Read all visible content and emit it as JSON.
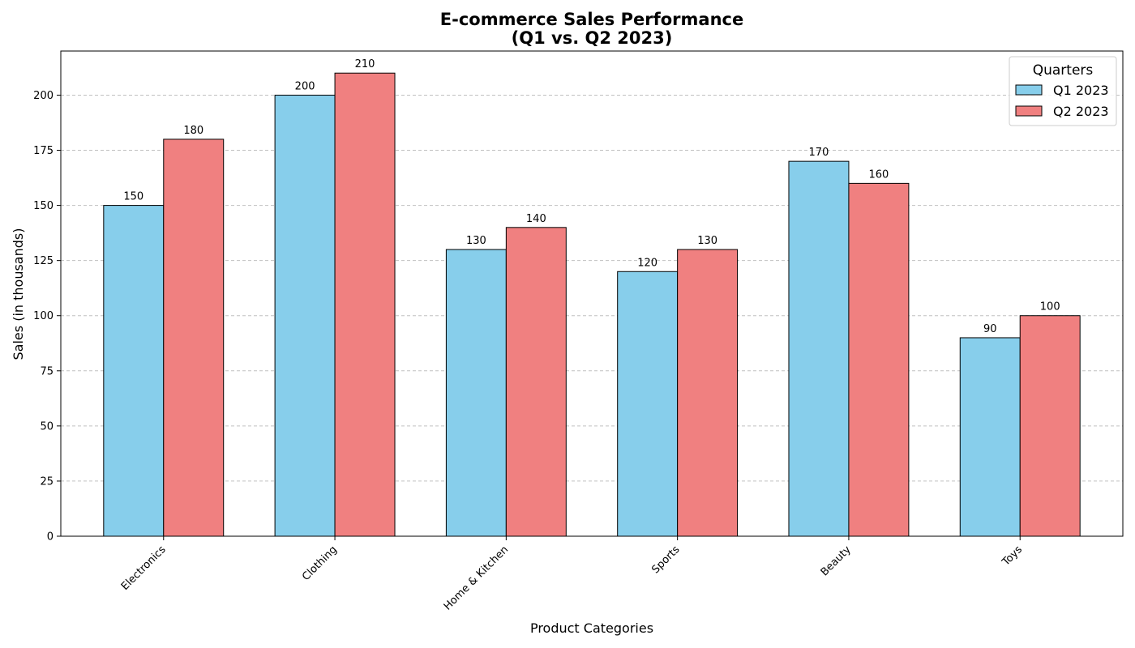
{
  "chart_data": {
    "type": "bar",
    "title_lines": [
      "E-commerce Sales Performance",
      "(Q1 vs. Q2 2023)"
    ],
    "xlabel": "Product Categories",
    "ylabel": "Sales (in thousands)",
    "categories": [
      "Electronics",
      "Clothing",
      "Home & Kitchen",
      "Sports",
      "Beauty",
      "Toys"
    ],
    "series": [
      {
        "name": "Q1 2023",
        "values": [
          150,
          200,
          130,
          120,
          170,
          90
        ],
        "color": "#87ceeb"
      },
      {
        "name": "Q2 2023",
        "values": [
          180,
          210,
          140,
          130,
          160,
          100
        ],
        "color": "#f08080"
      }
    ],
    "ylim": [
      0,
      220
    ],
    "yticks": [
      0,
      25,
      50,
      75,
      100,
      125,
      150,
      175,
      200
    ],
    "grid": "y-dashed",
    "legend": {
      "title": "Quarters",
      "placement": "top-right"
    },
    "data_labels": true
  }
}
